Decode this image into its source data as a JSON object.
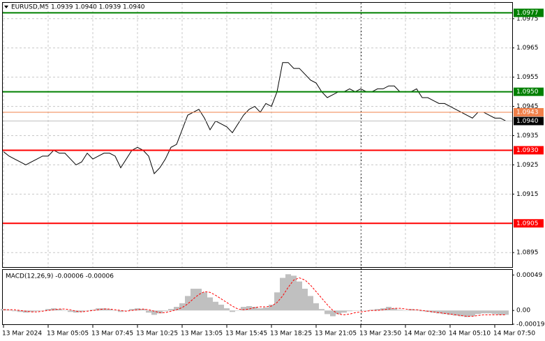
{
  "chart_data": [
    {
      "type": "line",
      "title": "EURUSD,M5  1.0939 1.0940 1.0939 1.0940",
      "color": "#000000",
      "categories": [
        "13 Mar 2024",
        null,
        null,
        null,
        null,
        null,
        null,
        null,
        "13 Mar 05:05",
        null,
        null,
        null,
        null,
        null,
        null,
        null,
        "13 Mar 07:45",
        null,
        null,
        null,
        null,
        null,
        null,
        null,
        "13 Mar 10:25",
        null,
        null,
        null,
        null,
        null,
        null,
        null,
        "13 Mar 13:05",
        null,
        null,
        null,
        null,
        null,
        null,
        null,
        "13 Mar 15:45",
        null,
        null,
        null,
        null,
        null,
        null,
        null,
        "13 Mar 18:25",
        null,
        null,
        null,
        null,
        null,
        null,
        null,
        "13 Mar 21:05",
        null,
        null,
        null,
        null,
        null,
        null,
        null,
        "13 Mar 23:50",
        null,
        null,
        null,
        null,
        null,
        null,
        null,
        "14 Mar 02:30",
        null,
        null,
        null,
        null,
        null,
        null,
        null,
        "14 Mar 05:10",
        null,
        null,
        null,
        null,
        null,
        null,
        null,
        "14 Mar 07:50",
        null,
        null
      ],
      "values": [
        1.09295,
        1.0928,
        1.0927,
        1.0926,
        1.0925,
        1.0926,
        1.0927,
        1.0928,
        1.0928,
        1.093,
        1.0929,
        1.0929,
        1.0927,
        1.0925,
        1.0926,
        1.0929,
        1.0927,
        1.0928,
        1.0929,
        1.0929,
        1.0928,
        1.0924,
        1.0927,
        1.093,
        1.0931,
        1.093,
        1.0928,
        1.0922,
        1.0924,
        1.0927,
        1.0931,
        1.0932,
        1.0937,
        1.0942,
        1.0943,
        1.0944,
        1.0941,
        1.0937,
        1.094,
        1.0939,
        1.0938,
        1.0936,
        1.0939,
        1.0942,
        1.0944,
        1.0945,
        1.0943,
        1.0946,
        1.0945,
        1.095,
        1.096,
        1.096,
        1.0958,
        1.0958,
        1.0956,
        1.0954,
        1.0953,
        1.095,
        1.0948,
        1.0949,
        1.095,
        1.095,
        1.0951,
        1.095,
        1.0951,
        1.095,
        1.095,
        1.0951,
        1.0951,
        1.0952,
        1.0952,
        1.095,
        1.095,
        1.095,
        1.0951,
        1.0948,
        1.0948,
        1.0947,
        1.0946,
        1.0946,
        1.0945,
        1.0944,
        1.0943,
        1.0942,
        1.0941,
        1.0943,
        1.0943,
        1.0942,
        1.0941,
        1.0941,
        1.094
      ],
      "ylim": [
        1.08898,
        1.09802
      ],
      "yticks": [
        1.0975,
        1.0965,
        1.0955,
        1.0945,
        1.0935,
        1.0925,
        1.0915,
        1.0895
      ],
      "grid": true,
      "levels": [
        {
          "value": 1.0977,
          "color": "#008000"
        },
        {
          "value": 1.095,
          "label": "1.0950",
          "color": "#008000"
        },
        {
          "value": 1.0943,
          "color": "#f0804a"
        },
        {
          "value": 1.094,
          "label": "1.0940",
          "color": "#000000"
        },
        {
          "value": 1.093,
          "label": "1.0930",
          "color": "#ff0000"
        },
        {
          "value": 1.0905,
          "color": "#ff0000"
        }
      ]
    },
    {
      "type": "macd",
      "title": "MACD(12,26,9) -0.00006 -0.00006",
      "histogram": {
        "color": "#c0c0c0",
        "values": [
          2e-05,
          1e-05,
          -1e-05,
          -2e-05,
          -3e-05,
          -2e-05,
          -1e-05,
          0,
          2e-05,
          3e-05,
          2e-05,
          0,
          -2e-05,
          -3e-05,
          -2e-05,
          0,
          1e-05,
          3e-05,
          3e-05,
          2e-05,
          0,
          -2e-05,
          0,
          2e-05,
          3e-05,
          2e-05,
          -3e-05,
          -6e-05,
          -4e-05,
          -1e-05,
          2e-05,
          5e-05,
          0.0001,
          0.0002,
          0.0003,
          0.0003,
          0.00025,
          0.00018,
          0.00012,
          8e-05,
          3e-05,
          -2e-05,
          0,
          5e-05,
          6e-05,
          5e-05,
          3e-05,
          4e-05,
          8e-05,
          0.00025,
          0.00045,
          0.0005,
          0.00048,
          0.0004,
          0.0003,
          0.0002,
          0.0001,
          2e-05,
          -5e-05,
          -8e-05,
          -5e-05,
          -3e-05,
          -1e-05,
          0,
          0,
          0,
          1e-05,
          2e-05,
          3e-05,
          5e-05,
          3e-05,
          1e-05,
          0,
          2e-05,
          1e-05,
          -1e-05,
          -2e-05,
          -3e-05,
          -4e-05,
          -5e-05,
          -6e-05,
          -7e-05,
          -8e-05,
          -9e-05,
          -8e-05,
          -5e-05,
          -4e-05,
          -4e-05,
          -5e-05,
          -6e-05,
          -6e-05
        ]
      },
      "signal": {
        "color": "#ff0000",
        "values": [
          1e-05,
          1e-05,
          1e-05,
          0,
          -1e-05,
          -2e-05,
          -2e-05,
          -1e-05,
          0,
          1e-05,
          2e-05,
          2e-05,
          1e-05,
          -1e-05,
          -2e-05,
          -1e-05,
          0,
          1e-05,
          2e-05,
          2e-05,
          1e-05,
          0,
          -1e-05,
          0,
          1e-05,
          2e-05,
          1e-05,
          -1e-05,
          -3e-05,
          -3e-05,
          -1e-05,
          1e-05,
          4e-05,
          9e-05,
          0.00016,
          0.00022,
          0.00026,
          0.00025,
          0.00021,
          0.00016,
          0.00011,
          6e-05,
          2e-05,
          1e-05,
          2e-05,
          4e-05,
          5e-05,
          5e-05,
          6e-05,
          0.00011,
          0.0002,
          0.00032,
          0.00042,
          0.00045,
          0.00042,
          0.00035,
          0.00026,
          0.00017,
          8e-05,
          0,
          -5e-05,
          -6e-05,
          -5e-05,
          -3e-05,
          -2e-05,
          -1e-05,
          0,
          0,
          1e-05,
          2e-05,
          3e-05,
          3e-05,
          2e-05,
          1e-05,
          1e-05,
          0,
          -1e-05,
          -2e-05,
          -3e-05,
          -4e-05,
          -5e-05,
          -6e-05,
          -7e-05,
          -8e-05,
          -8e-05,
          -7e-05,
          -6e-05,
          -6e-05,
          -6e-05,
          -6e-05,
          -6e-05
        ]
      },
      "ylim": [
        -0.0002,
        0.00057
      ],
      "yticks": [
        0.00049,
        {
          "value": 0,
          "label": "0.00"
        },
        -0.00019
      ]
    }
  ]
}
